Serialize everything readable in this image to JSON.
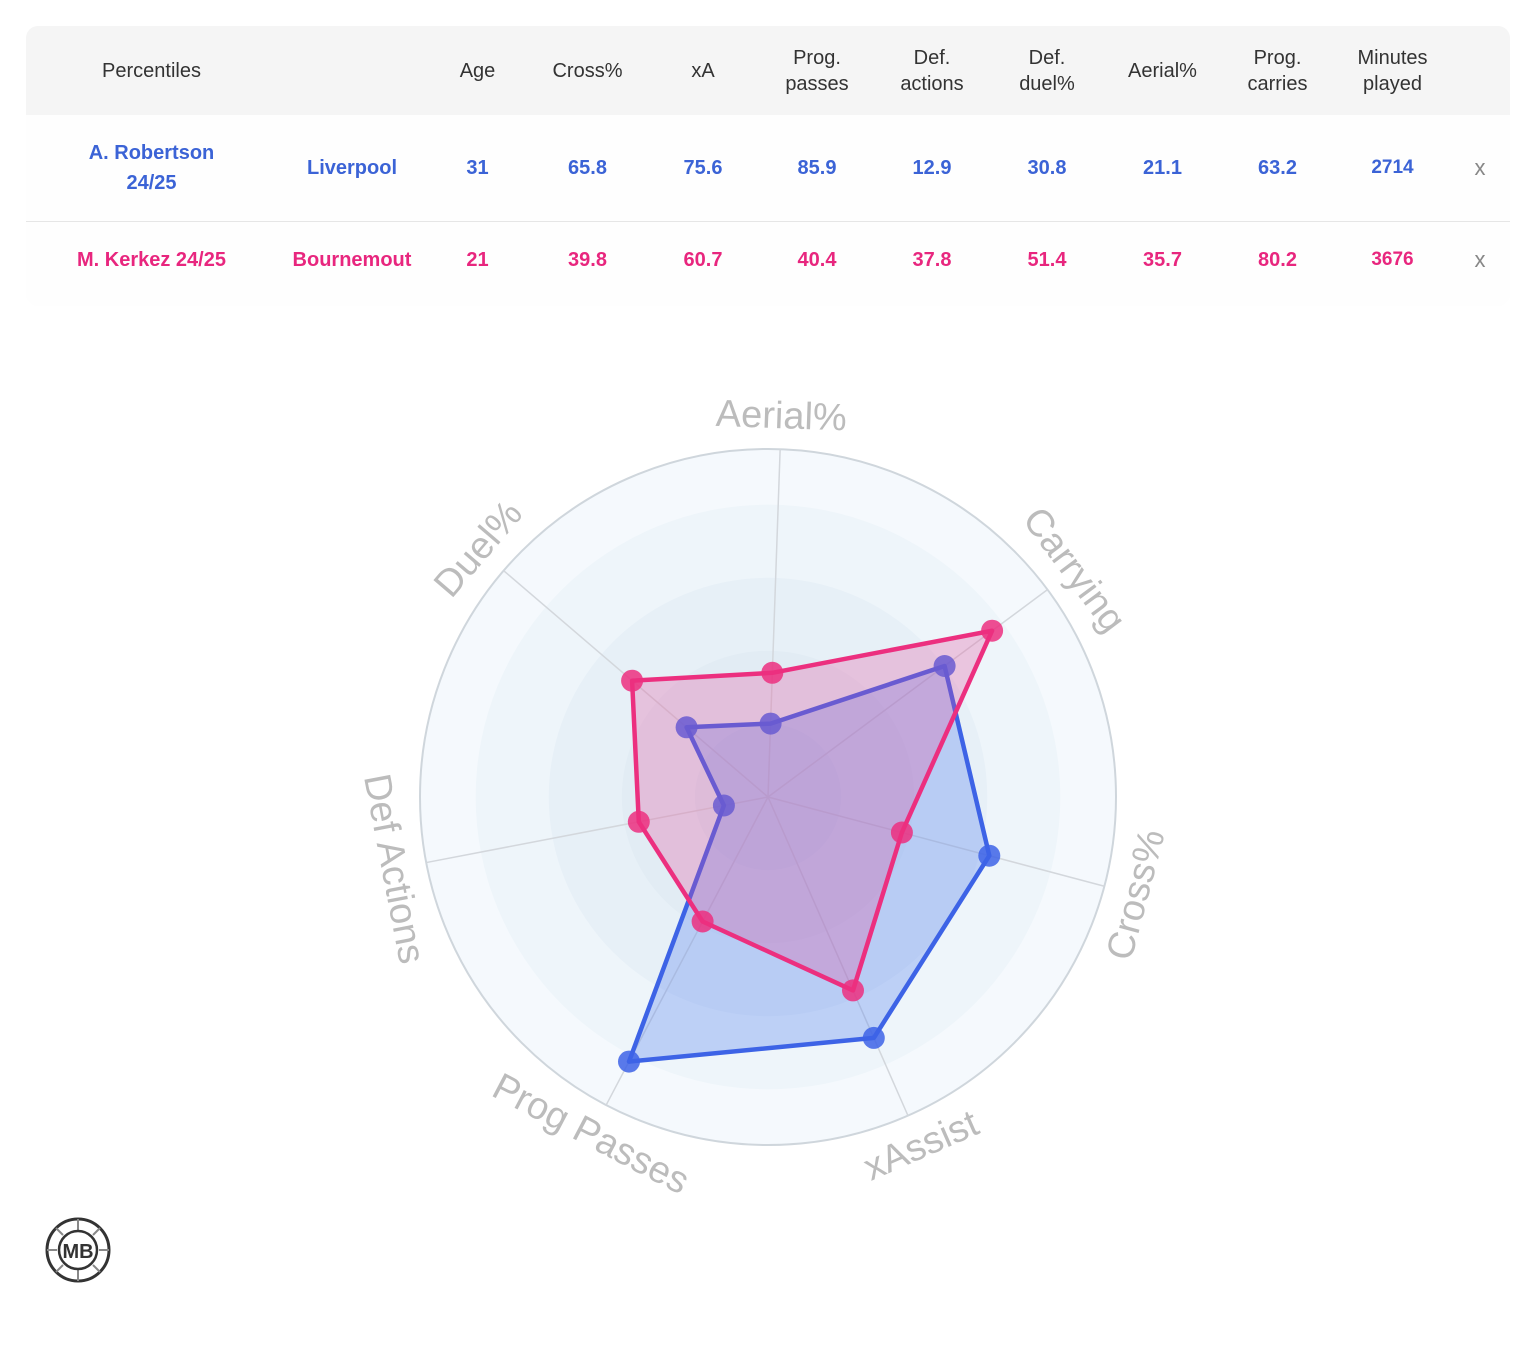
{
  "table": {
    "headers": [
      {
        "label": "Percentiles"
      },
      {
        "label": ""
      },
      {
        "label": "Age"
      },
      {
        "label": "Cross%"
      },
      {
        "label": "xA"
      },
      {
        "label": "Prog.",
        "label2": "passes"
      },
      {
        "label": "Def.",
        "label2": "actions"
      },
      {
        "label": "Def.",
        "label2": "duel%"
      },
      {
        "label": "Aerial%"
      },
      {
        "label": "Prog.",
        "label2": "carries"
      },
      {
        "label": "Minutes",
        "label2": "played"
      }
    ],
    "rows": [
      {
        "player": "A. Robertson",
        "season": "24/25",
        "team": "Liverpool",
        "age": "31",
        "cross": "65.8",
        "xa": "75.6",
        "prog_passes": "85.9",
        "def_actions": "12.9",
        "def_duel": "30.8",
        "aerial": "21.1",
        "prog_carries": "63.2",
        "minutes": "2714",
        "remove": "x"
      },
      {
        "player": "M. Kerkez 24/25",
        "team": "Bournemout",
        "age": "21",
        "cross": "39.8",
        "xa": "60.7",
        "prog_passes": "40.4",
        "def_actions": "37.8",
        "def_duel": "51.4",
        "aerial": "35.7",
        "prog_carries": "80.2",
        "minutes": "3676",
        "remove": "x"
      }
    ]
  },
  "chart_data": {
    "type": "radar",
    "axes": [
      "Aerial%",
      "Carrying",
      "Cross%",
      "xAssist",
      "Prog Passes",
      "Def Actions",
      "Duel%"
    ],
    "range": [
      0,
      100
    ],
    "series": [
      {
        "name": "A. Robertson 24/25",
        "color": "#3d63e6",
        "values": [
          21.1,
          63.2,
          65.8,
          75.6,
          85.9,
          12.9,
          30.8
        ]
      },
      {
        "name": "M. Kerkez 24/25",
        "color": "#ec2f7f",
        "values": [
          35.7,
          80.2,
          39.8,
          60.7,
          40.4,
          37.8,
          51.4
        ]
      }
    ]
  },
  "logo": {
    "text": "MB"
  }
}
